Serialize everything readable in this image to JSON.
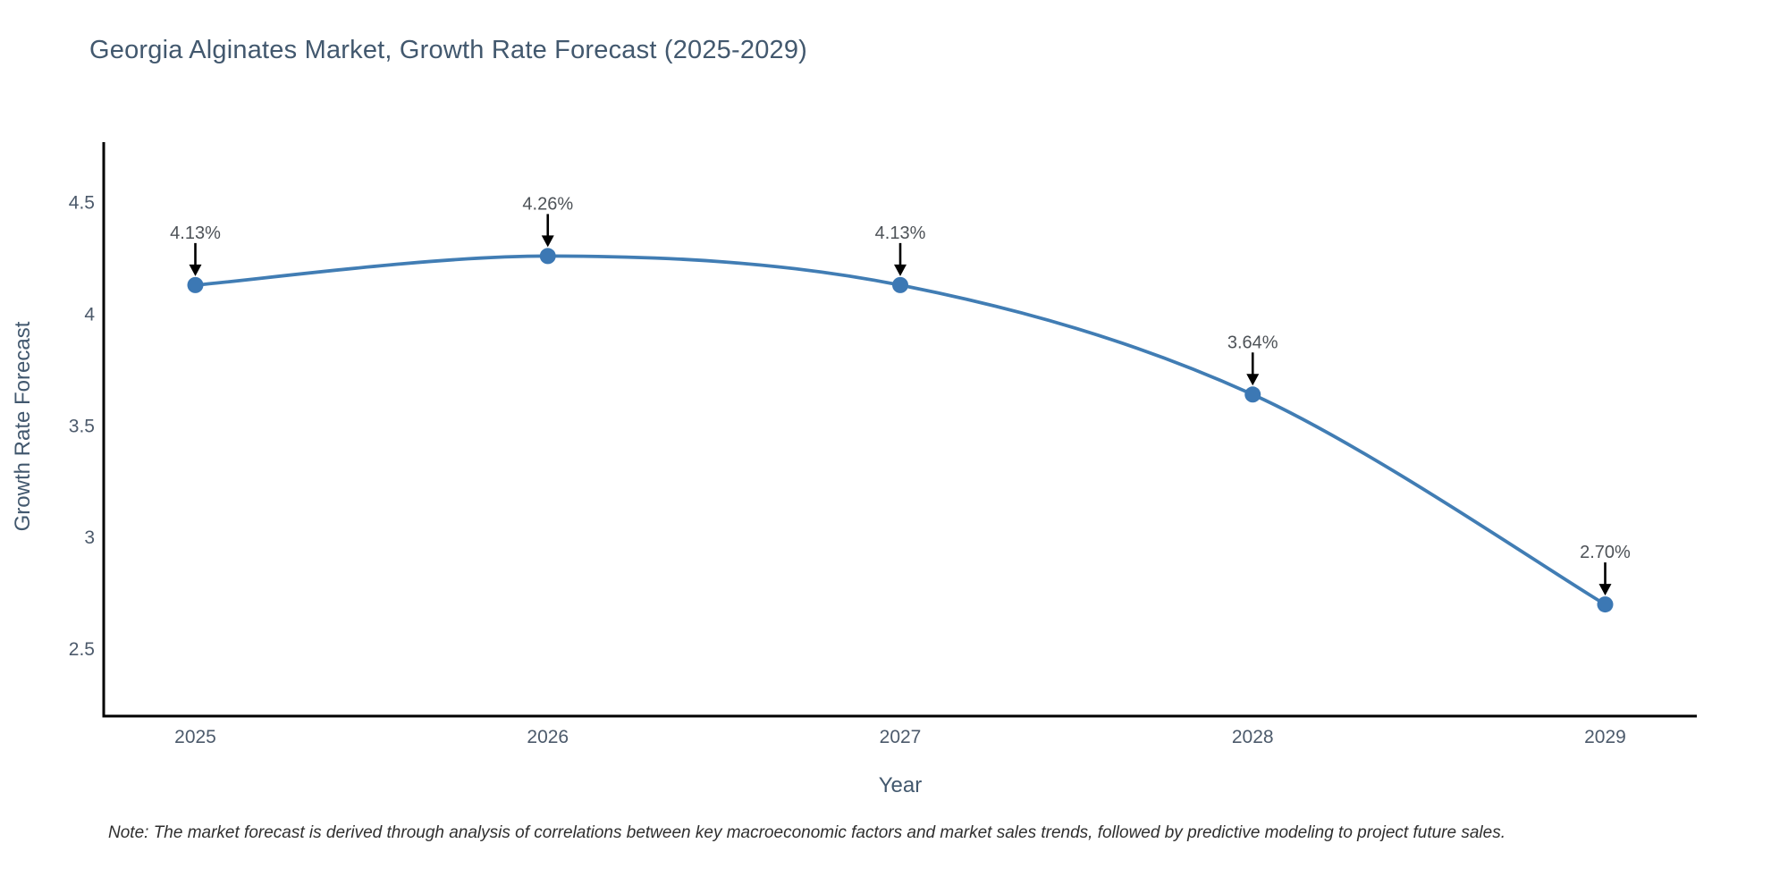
{
  "page": {
    "title": "Georgia Alginates Market, Growth Rate Forecast (2025-2029)",
    "note": "Note: The market forecast is derived through analysis of correlations between key macroeconomic factors and market sales trends, followed by predictive modeling to project future sales."
  },
  "chart_data": {
    "type": "line",
    "title": "Georgia Alginates Market, Growth Rate Forecast (2025-2029)",
    "xlabel": "Year",
    "ylabel": "Growth Rate Forecast",
    "categories": [
      "2025",
      "2026",
      "2027",
      "2028",
      "2029"
    ],
    "series": [
      {
        "name": "Growth Rate Forecast",
        "values": [
          4.13,
          4.26,
          4.13,
          3.64,
          2.7
        ]
      }
    ],
    "point_labels": [
      "4.13%",
      "4.26%",
      "4.13%",
      "3.64%",
      "2.70%"
    ],
    "y_ticks": [
      {
        "label": "4.5",
        "value": 4.5
      },
      {
        "label": "4",
        "value": 4.0
      },
      {
        "label": "3.5",
        "value": 3.5
      },
      {
        "label": "3",
        "value": 3.0
      },
      {
        "label": "2.5",
        "value": 2.5
      }
    ],
    "xlim": [
      2024.74,
      2029.26
    ],
    "ylim": [
      2.2,
      4.77
    ],
    "x_values": [
      2025,
      2026,
      2027,
      2028,
      2029
    ],
    "grid": false,
    "legend": "none",
    "line_shape": "spline",
    "annotations_arrow": true,
    "note": "Note: The market forecast is derived through analysis of correlations between key macroeconomic factors and market sales trends, followed by predictive modeling to project future sales.",
    "colors": {
      "line": "#417db4",
      "marker": "#3c78b4",
      "axis_line": "#000000",
      "title_text": "#42586e",
      "tick_text": "#4c5a6b",
      "annotation_text": "#4d5257",
      "arrow": "#000000",
      "note_text": "#2f2f2f",
      "background": "#ffffff"
    }
  }
}
